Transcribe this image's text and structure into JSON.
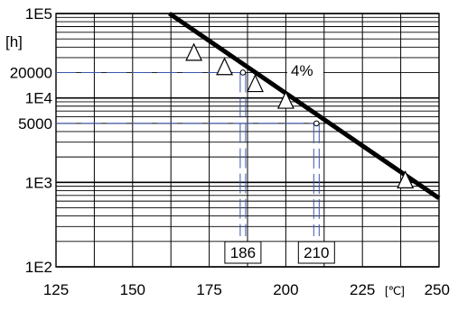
{
  "chart_data": {
    "type": "line",
    "scale": {
      "x": "linear",
      "y": "log"
    },
    "xlim": [
      125,
      250
    ],
    "ylim": [
      100,
      100000
    ],
    "x_ticks": [
      "125",
      "150",
      "175",
      "200",
      "225",
      "250"
    ],
    "x_unit": "[℃]",
    "y_ticks": [
      "1E2",
      "1E3",
      "1E4",
      "1E5"
    ],
    "y_unit": "[h]",
    "y_extra_labels": [
      "20000",
      "5000"
    ],
    "grid": true,
    "series": [
      {
        "label": "4%",
        "line": {
          "x": [
            162,
            250
          ],
          "y": [
            100000,
            650
          ]
        },
        "points": [
          {
            "x": 170,
            "y": 34000
          },
          {
            "x": 180,
            "y": 23000
          },
          {
            "x": 190,
            "y": 14500
          },
          {
            "x": 200,
            "y": 9200
          },
          {
            "x": 239,
            "y": 1050
          }
        ]
      }
    ],
    "reference_lines": [
      {
        "y": 20000,
        "x": 186,
        "label": "186"
      },
      {
        "y": 5000,
        "x": 210,
        "label": "210"
      }
    ],
    "colors": {
      "line": "#000000",
      "grid": "#000000",
      "reference": "#3b56b0"
    }
  }
}
